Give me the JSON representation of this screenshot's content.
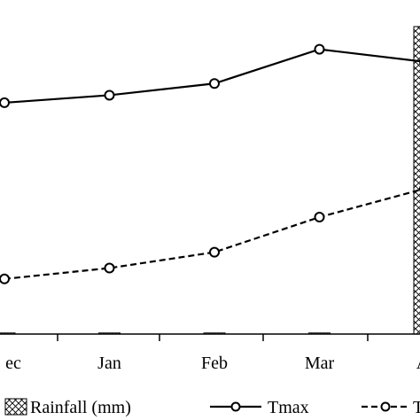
{
  "chart_data": {
    "type": "line",
    "categories": [
      "Dec",
      "Jan",
      "Feb",
      "Mar",
      "Apr"
    ],
    "tick_labels": [
      "ec",
      "Jan",
      "Feb",
      "Mar",
      "A"
    ],
    "series": [
      {
        "name": "Rainfall (mm)",
        "kind": "bar",
        "pattern": "crosshatch",
        "values": [
          0.2,
          0.1,
          0.3,
          0.3,
          100
        ]
      },
      {
        "name": "Tmax",
        "kind": "line",
        "style": "solid",
        "marker": "open-circle",
        "values": [
          27.7,
          28.6,
          30.0,
          34.1,
          32.6
        ]
      },
      {
        "name": "Tmin",
        "kind": "line",
        "style": "dashed",
        "marker": "open-circle",
        "values": [
          6.6,
          7.9,
          9.8,
          14.0,
          17.4
        ]
      }
    ],
    "legend_labels": [
      "Rainfall (mm)",
      "Tmax",
      "Tm"
    ],
    "legend_position": "bottom",
    "colors": {
      "line": "#000000",
      "background": "#ffffff"
    }
  }
}
